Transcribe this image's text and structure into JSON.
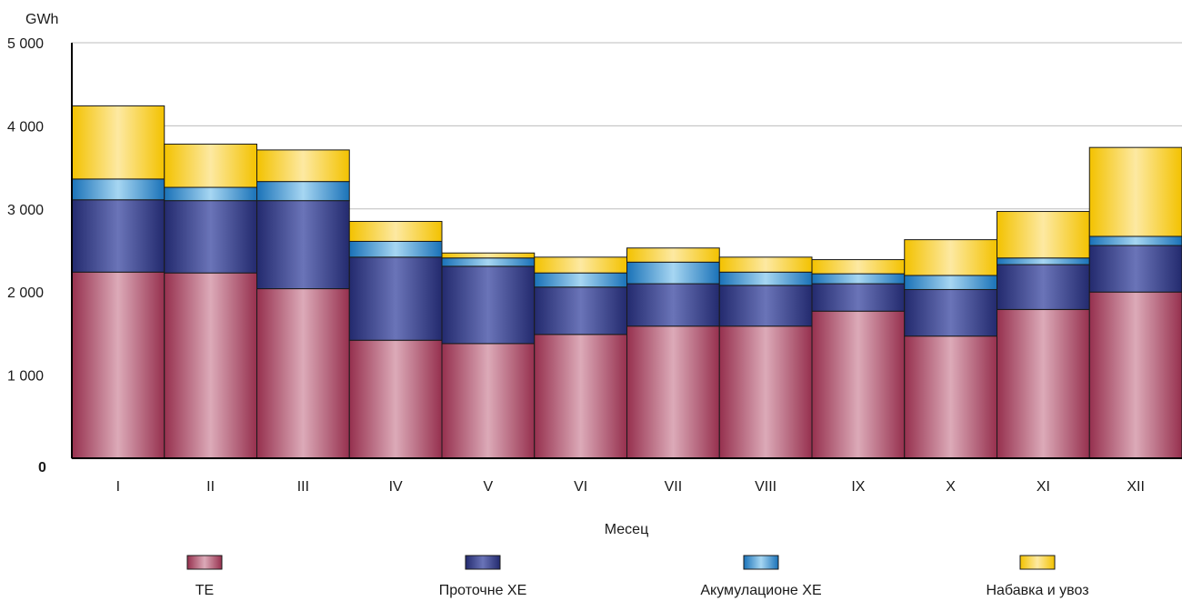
{
  "chart_data": {
    "type": "bar",
    "stacked": true,
    "y_unit": "GWh",
    "xlabel": "Месец",
    "ylabel": "",
    "title": "",
    "ylim": [
      0,
      5000
    ],
    "y_ticks": [
      "0",
      "1 000",
      "2 000",
      "3 000",
      "4 000",
      "5 000"
    ],
    "y_tick_values": [
      0,
      1000,
      2000,
      3000,
      4000,
      5000
    ],
    "grid": true,
    "legend_position": "bottom",
    "categories": [
      "I",
      "II",
      "III",
      "IV",
      "V",
      "VI",
      "VII",
      "VIII",
      "IX",
      "X",
      "XI",
      "XII"
    ],
    "series": [
      {
        "name": "ТЕ",
        "color": "#b85a74",
        "values": [
          2240,
          2230,
          2040,
          1420,
          1380,
          1490,
          1590,
          1590,
          1770,
          1470,
          1790,
          2000
        ]
      },
      {
        "name": "Проточне ХЕ",
        "color": "#3a4088",
        "values": [
          870,
          870,
          1060,
          1000,
          930,
          570,
          510,
          490,
          330,
          560,
          540,
          560
        ]
      },
      {
        "name": "Акумулационе ХЕ",
        "color": "#2e8fd0",
        "values": [
          250,
          160,
          230,
          190,
          100,
          170,
          260,
          160,
          120,
          170,
          80,
          110
        ]
      },
      {
        "name": "Набавка и увоз",
        "color": "#f5cc2a",
        "values": [
          880,
          520,
          380,
          240,
          60,
          190,
          170,
          180,
          170,
          430,
          560,
          1070
        ]
      }
    ]
  }
}
